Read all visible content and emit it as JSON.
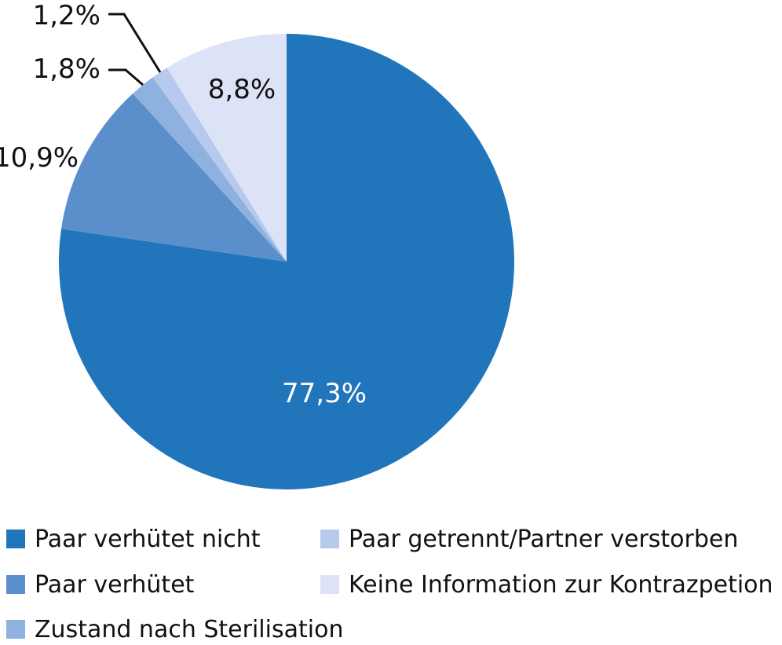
{
  "chart_data": {
    "type": "pie",
    "start_angle_deg": 0,
    "direction": "clockwise",
    "slices": [
      {
        "label": "Paar verhütet nicht",
        "value": 77.3,
        "value_label": "77,3%",
        "color": "#2176bb",
        "label_color": "#ffffff"
      },
      {
        "label": "Paar verhütet",
        "value": 10.9,
        "value_label": "10,9%",
        "color": "#5a8fcc",
        "label_color": "#111111"
      },
      {
        "label": "Zustand nach Sterilisation",
        "value": 1.8,
        "value_label": "1,8%",
        "color": "#8fb1e0",
        "label_color": "#111111"
      },
      {
        "label": "Paar getrennt/Partner verstorben",
        "value": 1.2,
        "value_label": "1,2%",
        "color": "#b7caee",
        "label_color": "#111111"
      },
      {
        "label": "Keine Information zur Kontrazpetion",
        "value": 8.8,
        "value_label": "8,8%",
        "color": "#dde3f6",
        "label_color": "#111111"
      }
    ]
  }
}
